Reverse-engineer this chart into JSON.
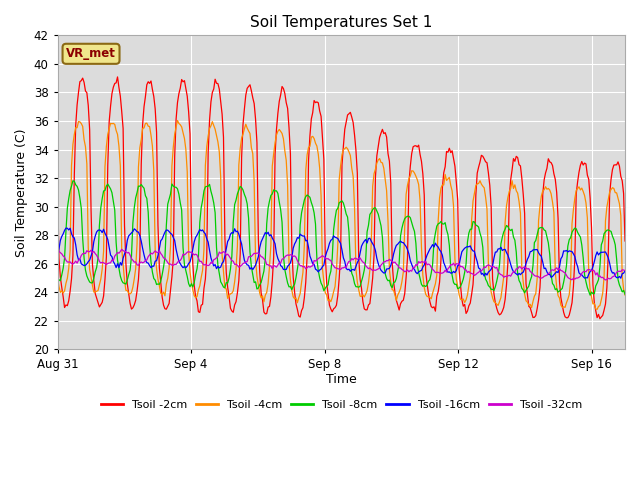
{
  "title": "Soil Temperatures Set 1",
  "xlabel": "Time",
  "ylabel": "Soil Temperature (C)",
  "ylim": [
    20,
    42
  ],
  "yticks": [
    20,
    22,
    24,
    26,
    28,
    30,
    32,
    34,
    36,
    38,
    40,
    42
  ],
  "plot_bg_color": "#dcdcdc",
  "grid_color": "#ffffff",
  "colors": {
    "2cm": "#ff0000",
    "4cm": "#ff8c00",
    "8cm": "#00cc00",
    "16cm": "#0000ff",
    "32cm": "#cc00cc"
  },
  "legend_labels": [
    "Tsoil -2cm",
    "Tsoil -4cm",
    "Tsoil -8cm",
    "Tsoil -16cm",
    "Tsoil -32cm"
  ],
  "annotation_text": "VR_met",
  "annotation_color": "#8B0000",
  "annotation_bg": "#f0e68c",
  "annotation_border": "#8B6914",
  "xtick_positions": [
    0,
    4,
    8,
    12,
    16
  ],
  "xtick_labels": [
    "Aug 31",
    "Sep 4",
    "Sep 8",
    "Sep 12",
    "Sep 16"
  ],
  "figsize": [
    6.4,
    4.8
  ],
  "dpi": 100
}
